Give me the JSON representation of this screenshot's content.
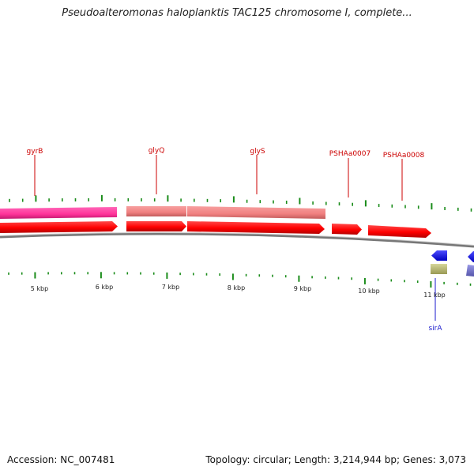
{
  "header": {
    "title": "Pseudoalteromonas haloplanktis TAC125 chromosome I, complete..."
  },
  "footer": {
    "accession": "Accession: NC_007481",
    "summary": "Topology: circular; Length: 3,214,944 bp; Genes: 3,073"
  },
  "ruler": [
    "5 kbp",
    "6 kbp",
    "7 kbp",
    "8 kbp",
    "9 kbp",
    "10 kbp",
    "11 kbp"
  ],
  "gene_labels": [
    {
      "name": "gyrB",
      "strand": "forward",
      "color": "#cc0000"
    },
    {
      "name": "glyQ",
      "strand": "forward",
      "color": "#cc0000"
    },
    {
      "name": "glyS",
      "strand": "forward",
      "color": "#cc0000"
    },
    {
      "name": "PSHAa0007",
      "strand": "forward",
      "color": "#cc0000"
    },
    {
      "name": "PSHAa0008",
      "strand": "forward",
      "color": "#cc0000"
    },
    {
      "name": "sirA",
      "strand": "reverse",
      "color": "#1a1acc"
    }
  ],
  "colors": {
    "forward_cds": "#ff0000",
    "forward_feature_pink": "#ff3399",
    "forward_feature_salmon": "#f08080",
    "reverse_cds": "#0000ff",
    "reverse_feature_tan": "#bfbf77",
    "reverse_feature_purple": "#7777cc",
    "backbone": "#888888",
    "tick": "#1a8c1a"
  }
}
